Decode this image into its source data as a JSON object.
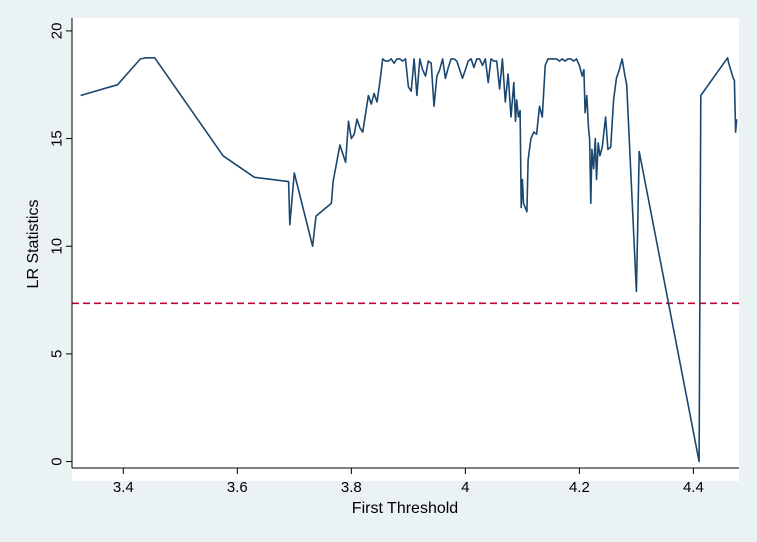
{
  "chart_data": {
    "type": "line",
    "title": "",
    "xlabel": "First Threshold",
    "ylabel": "LR Statistics",
    "xlim": [
      3.31,
      4.48
    ],
    "ylim": [
      -0.3,
      20.6
    ],
    "x_ticks": [
      3.4,
      3.6,
      3.8,
      4.0,
      4.2,
      4.4
    ],
    "x_tick_labels": [
      "3.4",
      "3.6",
      "3.8",
      "4",
      "4.2",
      "4.4"
    ],
    "y_ticks": [
      0,
      5,
      10,
      15,
      20
    ],
    "y_tick_labels": [
      "0",
      "5",
      "10",
      "15",
      "20"
    ],
    "grid": false,
    "legend": "none",
    "colors": {
      "background": "#eaf2f3",
      "plot_background": "#ffffff",
      "series": "#1a476f",
      "reference_line": "#c10534",
      "axis": "#000000"
    },
    "reference_lines": [
      {
        "y": 7.35,
        "style": "dashed"
      }
    ],
    "series": [
      {
        "x": [
          3.325,
          3.39,
          3.43,
          3.44,
          3.455,
          3.575,
          3.63,
          3.69,
          3.692,
          3.7,
          3.732,
          3.738,
          3.765,
          3.768,
          3.78,
          3.79,
          3.795,
          3.8,
          3.805,
          3.81,
          3.815,
          3.82,
          3.83,
          3.835,
          3.84,
          3.845,
          3.85,
          3.855,
          3.86,
          3.865,
          3.87,
          3.875,
          3.88,
          3.885,
          3.89,
          3.895,
          3.9,
          3.905,
          3.91,
          3.915,
          3.92,
          3.925,
          3.93,
          3.935,
          3.94,
          3.945,
          3.95,
          3.955,
          3.96,
          3.965,
          3.97,
          3.975,
          3.98,
          3.985,
          3.99,
          3.995,
          4.0,
          4.005,
          4.01,
          4.015,
          4.02,
          4.025,
          4.03,
          4.035,
          4.04,
          4.045,
          4.05,
          4.055,
          4.06,
          4.065,
          4.07,
          4.075,
          4.08,
          4.085,
          4.088,
          4.09,
          4.093,
          4.096,
          4.098,
          4.1,
          4.102,
          4.105,
          4.108,
          4.11,
          4.115,
          4.12,
          4.125,
          4.13,
          4.135,
          4.14,
          4.145,
          4.15,
          4.155,
          4.16,
          4.165,
          4.17,
          4.175,
          4.18,
          4.185,
          4.19,
          4.195,
          4.2,
          4.205,
          4.208,
          4.21,
          4.213,
          4.216,
          4.218,
          4.22,
          4.222,
          4.225,
          4.228,
          4.23,
          4.233,
          4.236,
          4.24,
          4.243,
          4.246,
          4.25,
          4.255,
          4.26,
          4.265,
          4.27,
          4.275,
          4.28,
          4.283,
          4.3,
          4.305,
          4.41,
          4.413,
          4.46,
          4.462,
          4.47,
          4.472,
          4.474,
          4.476
        ],
        "y": [
          17.0,
          17.5,
          18.7,
          18.75,
          18.75,
          14.2,
          13.2,
          13.0,
          11.0,
          13.4,
          10.0,
          11.4,
          12.0,
          13.0,
          14.7,
          13.9,
          15.8,
          15.0,
          15.2,
          15.9,
          15.5,
          15.3,
          17.0,
          16.6,
          17.1,
          16.7,
          17.6,
          18.7,
          18.6,
          18.6,
          18.7,
          18.5,
          18.7,
          18.7,
          18.6,
          18.7,
          17.4,
          17.2,
          18.7,
          17.0,
          18.7,
          18.2,
          17.9,
          18.6,
          18.5,
          16.5,
          17.9,
          18.2,
          18.7,
          17.8,
          18.3,
          18.7,
          18.7,
          18.6,
          18.2,
          17.8,
          18.2,
          18.6,
          18.7,
          18.3,
          18.7,
          18.7,
          18.4,
          18.7,
          17.6,
          18.7,
          18.6,
          18.6,
          17.3,
          18.7,
          16.7,
          18.0,
          16.0,
          17.6,
          15.8,
          16.8,
          16.0,
          16.3,
          11.8,
          13.1,
          12.0,
          11.8,
          11.6,
          14.0,
          15.0,
          15.3,
          15.2,
          16.5,
          16.0,
          18.4,
          18.7,
          18.7,
          18.7,
          18.7,
          18.6,
          18.7,
          18.6,
          18.7,
          18.7,
          18.6,
          18.7,
          18.4,
          17.9,
          18.2,
          16.2,
          17.0,
          15.5,
          15.0,
          12.0,
          14.5,
          13.6,
          15.0,
          13.1,
          14.8,
          14.2,
          14.6,
          15.3,
          16.0,
          14.5,
          14.6,
          16.8,
          17.8,
          18.2,
          18.7,
          17.9,
          17.5,
          7.9,
          14.4,
          0.0,
          17.0,
          18.75,
          18.5,
          17.8,
          17.7,
          15.3,
          15.9
        ]
      }
    ]
  }
}
